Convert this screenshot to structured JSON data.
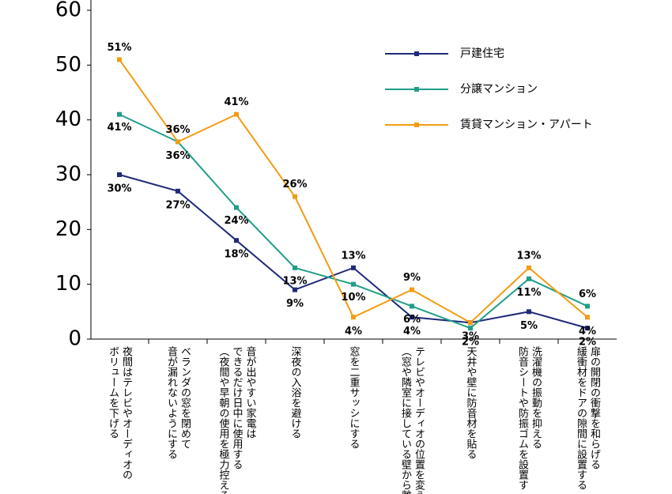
{
  "chart_data": {
    "type": "line",
    "categories": [
      "夜間はテレビやオーディオの\nボリュームを下げる",
      "ベランダの窓を閉めて\n音が漏れないようにする",
      "音が出やすい家電は\nできるだけ日中に使用する\n（夜間や早朝の使用を極力控える",
      "深夜の入浴を避ける",
      "窓を二重サッシにする",
      "テレビやオーディオの位置を変え\n（窓や隣室に接している壁から離",
      "天井や壁に防音材を貼る",
      "洗濯機の振動を抑える\n防音シートや防振ゴムを設置す",
      "扉の開閉の衝撃を和らげる\n緩衝材をドアの隙間に設置する"
    ],
    "series": [
      {
        "name": "戸建住宅",
        "color": "#1f2a7a",
        "values": [
          30,
          27,
          18,
          9,
          13,
          4,
          3,
          5,
          2
        ],
        "value_labels": [
          "30%",
          "27%",
          "18%",
          "9%",
          "13%",
          "4%",
          "3%",
          "5%",
          "2%"
        ]
      },
      {
        "name": "分譲マンション",
        "color": "#1f9e89",
        "values": [
          41,
          36,
          24,
          13,
          10,
          6,
          2,
          11,
          6
        ],
        "value_labels": [
          "41%",
          "36%",
          "24%",
          "13%",
          "10%",
          "6%",
          "2%",
          "11%",
          "6%"
        ]
      },
      {
        "name": "賃貸マンション・アパート",
        "color": "#f39c12",
        "values": [
          51,
          36,
          41,
          26,
          4,
          9,
          3,
          13,
          4
        ],
        "value_labels": [
          "51%",
          "36%",
          "41%",
          "26%",
          "4%",
          "9%",
          null,
          "13%",
          "4%"
        ]
      }
    ],
    "ylim": [
      0,
      60
    ],
    "yticks": [
      0,
      10,
      20,
      30,
      40,
      50,
      60
    ],
    "grid": false,
    "legend": "top-right"
  }
}
